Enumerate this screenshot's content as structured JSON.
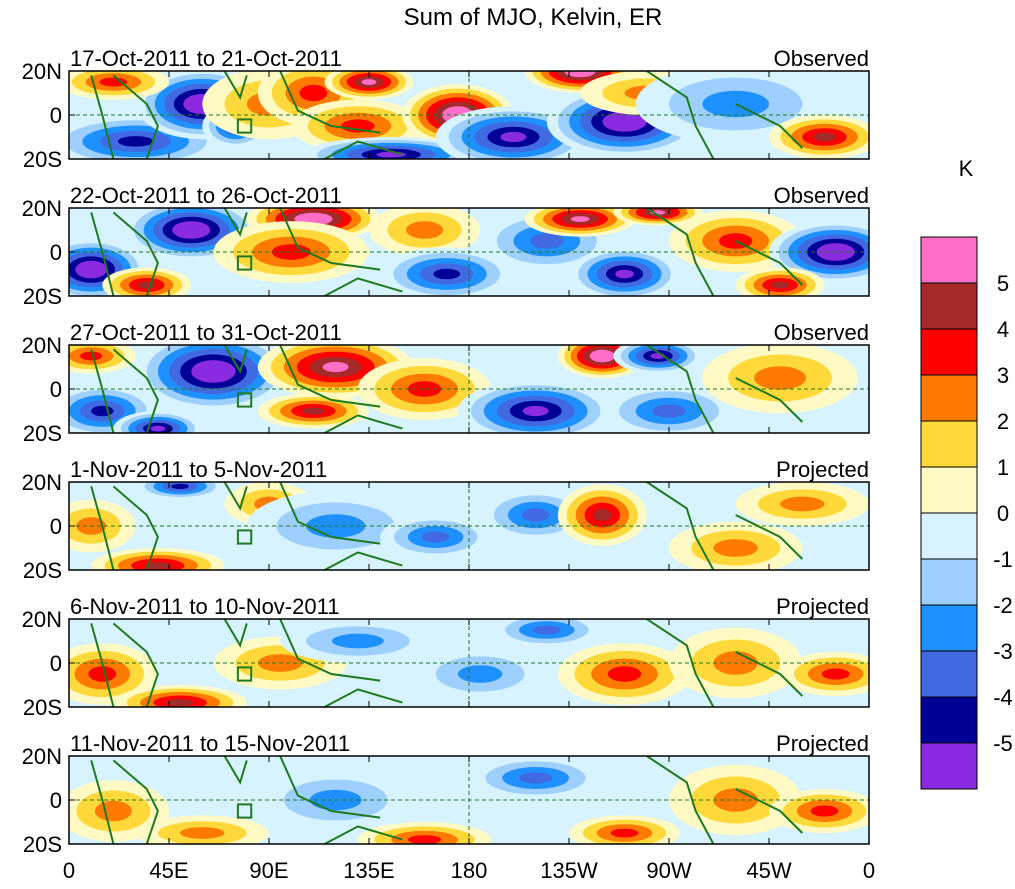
{
  "chart_data": {
    "type": "heatmap",
    "title": "Sum of MJO, Kelvin, ER",
    "colorbar": {
      "unit": "K",
      "tick_labels": [
        "5",
        "4",
        "3",
        "2",
        "1",
        "0",
        "-1",
        "-2",
        "-3",
        "-4",
        "-5"
      ],
      "colors": [
        "#ff6ec7",
        "#a52a2a",
        "#ff0000",
        "#ff7a00",
        "#ffd93a",
        "#fff9c4",
        "#d6f3ff",
        "#9ed0ff",
        "#1e90ff",
        "#4169e1",
        "#000096",
        "#8a2be2"
      ]
    },
    "x_ticks": [
      "0",
      "45E",
      "90E",
      "135E",
      "180",
      "135W",
      "90W",
      "45W",
      "0"
    ],
    "x_range": [
      0,
      360
    ],
    "y_ticks": [
      "20N",
      "0",
      "20S"
    ],
    "y_range": [
      -20,
      20
    ],
    "reference_lines": {
      "lon": 180,
      "lat": 0
    },
    "panels": [
      {
        "date_range": "17-Oct-2011 to 21-Oct-2011",
        "status": "Observed",
        "blobs": [
          {
            "lon": 30,
            "lat": -12,
            "v": -3.5,
            "w": 40,
            "h": 12
          },
          {
            "lon": 60,
            "lat": 5,
            "v": -5.2,
            "w": 30,
            "h": 16
          },
          {
            "lon": 75,
            "lat": -5,
            "v": -3.5,
            "w": 15,
            "h": 10
          },
          {
            "lon": 90,
            "lat": 5,
            "v": 1.5,
            "w": 30,
            "h": 16
          },
          {
            "lon": 110,
            "lat": 10,
            "v": 2.5,
            "w": 25,
            "h": 15
          },
          {
            "lon": 135,
            "lat": 15,
            "v": 4.5,
            "w": 20,
            "h": 8
          },
          {
            "lon": 130,
            "lat": -5,
            "v": 2.5,
            "w": 30,
            "h": 12
          },
          {
            "lon": 175,
            "lat": 0,
            "v": 5.5,
            "w": 25,
            "h": 14
          },
          {
            "lon": 145,
            "lat": -18,
            "v": -4.5,
            "w": 40,
            "h": 8
          },
          {
            "lon": 200,
            "lat": -10,
            "v": -4.5,
            "w": 35,
            "h": 14
          },
          {
            "lon": 230,
            "lat": 20,
            "v": 5.5,
            "w": 25,
            "h": 10
          },
          {
            "lon": 250,
            "lat": -3,
            "v": -5.5,
            "w": 35,
            "h": 16
          },
          {
            "lon": 260,
            "lat": 10,
            "v": 1.5,
            "w": 30,
            "h": 10
          },
          {
            "lon": 300,
            "lat": 5,
            "v": -1.5,
            "w": 45,
            "h": 18
          },
          {
            "lon": 340,
            "lat": -10,
            "v": 3.2,
            "w": 25,
            "h": 10
          },
          {
            "lon": 20,
            "lat": 15,
            "v": 2.5,
            "w": 25,
            "h": 8
          }
        ]
      },
      {
        "date_range": "22-Oct-2011 to 26-Oct-2011",
        "status": "Observed",
        "blobs": [
          {
            "lon": 10,
            "lat": -8,
            "v": -5.5,
            "w": 25,
            "h": 14
          },
          {
            "lon": 55,
            "lat": 10,
            "v": -5.5,
            "w": 30,
            "h": 14
          },
          {
            "lon": 35,
            "lat": -15,
            "v": 3.2,
            "w": 20,
            "h": 8
          },
          {
            "lon": 110,
            "lat": 15,
            "v": 5.5,
            "w": 30,
            "h": 10
          },
          {
            "lon": 100,
            "lat": 0,
            "v": 2.5,
            "w": 35,
            "h": 14
          },
          {
            "lon": 160,
            "lat": 10,
            "v": 1.5,
            "w": 25,
            "h": 12
          },
          {
            "lon": 170,
            "lat": -10,
            "v": -3.5,
            "w": 30,
            "h": 12
          },
          {
            "lon": 215,
            "lat": 5,
            "v": -2.5,
            "w": 30,
            "h": 14
          },
          {
            "lon": 230,
            "lat": 15,
            "v": 5,
            "w": 25,
            "h": 8
          },
          {
            "lon": 265,
            "lat": 18,
            "v": 5,
            "w": 20,
            "h": 6
          },
          {
            "lon": 250,
            "lat": -10,
            "v": -4.5,
            "w": 25,
            "h": 12
          },
          {
            "lon": 300,
            "lat": 5,
            "v": 2.5,
            "w": 30,
            "h": 14
          },
          {
            "lon": 345,
            "lat": 0,
            "v": -5.5,
            "w": 30,
            "h": 14
          },
          {
            "lon": 320,
            "lat": -15,
            "v": 3.2,
            "w": 20,
            "h": 8
          }
        ]
      },
      {
        "date_range": "27-Oct-2011 to 31-Oct-2011",
        "status": "Observed",
        "blobs": [
          {
            "lon": 10,
            "lat": 15,
            "v": 2.5,
            "w": 20,
            "h": 8
          },
          {
            "lon": 15,
            "lat": -10,
            "v": -3.5,
            "w": 25,
            "h": 12
          },
          {
            "lon": 65,
            "lat": 8,
            "v": -5.5,
            "w": 35,
            "h": 18
          },
          {
            "lon": 40,
            "lat": -18,
            "v": -4.5,
            "w": 20,
            "h": 8
          },
          {
            "lon": 120,
            "lat": 10,
            "v": 4.5,
            "w": 35,
            "h": 14
          },
          {
            "lon": 110,
            "lat": -10,
            "v": 3.5,
            "w": 25,
            "h": 8
          },
          {
            "lon": 160,
            "lat": 0,
            "v": 2.2,
            "w": 30,
            "h": 14
          },
          {
            "lon": 210,
            "lat": -10,
            "v": -4.5,
            "w": 35,
            "h": 14
          },
          {
            "lon": 240,
            "lat": 15,
            "v": 5.5,
            "w": 20,
            "h": 10
          },
          {
            "lon": 265,
            "lat": 15,
            "v": -4.5,
            "w": 20,
            "h": 8
          },
          {
            "lon": 270,
            "lat": -10,
            "v": -2.5,
            "w": 30,
            "h": 12
          },
          {
            "lon": 320,
            "lat": 5,
            "v": 1.8,
            "w": 35,
            "h": 16
          }
        ]
      },
      {
        "date_range": "1-Nov-2011 to 5-Nov-2011",
        "status": "Projected",
        "blobs": [
          {
            "lon": 50,
            "lat": 18,
            "v": -3.5,
            "w": 20,
            "h": 6
          },
          {
            "lon": 40,
            "lat": -18,
            "v": 3.2,
            "w": 30,
            "h": 8
          },
          {
            "lon": 10,
            "lat": 0,
            "v": 1.5,
            "w": 20,
            "h": 12
          },
          {
            "lon": 90,
            "lat": 10,
            "v": 1.5,
            "w": 20,
            "h": 10
          },
          {
            "lon": 120,
            "lat": 0,
            "v": -1.8,
            "w": 40,
            "h": 16
          },
          {
            "lon": 165,
            "lat": -5,
            "v": -2.5,
            "w": 25,
            "h": 10
          },
          {
            "lon": 210,
            "lat": 5,
            "v": -2.2,
            "w": 25,
            "h": 12
          },
          {
            "lon": 240,
            "lat": 5,
            "v": 3.8,
            "w": 20,
            "h": 14
          },
          {
            "lon": 300,
            "lat": -10,
            "v": 1.5,
            "w": 30,
            "h": 12
          },
          {
            "lon": 330,
            "lat": 10,
            "v": 1.2,
            "w": 30,
            "h": 10
          }
        ]
      },
      {
        "date_range": "6-Nov-2011 to 10-Nov-2011",
        "status": "Projected",
        "blobs": [
          {
            "lon": 15,
            "lat": -5,
            "v": 2.5,
            "w": 25,
            "h": 14
          },
          {
            "lon": 50,
            "lat": -18,
            "v": 3.2,
            "w": 30,
            "h": 8
          },
          {
            "lon": 95,
            "lat": 0,
            "v": 1.2,
            "w": 30,
            "h": 12
          },
          {
            "lon": 130,
            "lat": 10,
            "v": -1.8,
            "w": 35,
            "h": 10
          },
          {
            "lon": 185,
            "lat": -5,
            "v": -1.5,
            "w": 30,
            "h": 12
          },
          {
            "lon": 215,
            "lat": 15,
            "v": -2.5,
            "w": 25,
            "h": 8
          },
          {
            "lon": 250,
            "lat": -5,
            "v": 2.6,
            "w": 30,
            "h": 14
          },
          {
            "lon": 300,
            "lat": 0,
            "v": 1.5,
            "w": 30,
            "h": 16
          },
          {
            "lon": 345,
            "lat": -5,
            "v": 2.8,
            "w": 25,
            "h": 10
          }
        ]
      },
      {
        "date_range": "11-Nov-2011 to 15-Nov-2011",
        "status": "Projected",
        "blobs": [
          {
            "lon": 20,
            "lat": -5,
            "v": 1.8,
            "w": 25,
            "h": 14
          },
          {
            "lon": 60,
            "lat": -15,
            "v": 1.2,
            "w": 30,
            "h": 8
          },
          {
            "lon": 120,
            "lat": 0,
            "v": -1.5,
            "w": 35,
            "h": 14
          },
          {
            "lon": 160,
            "lat": -18,
            "v": 2.2,
            "w": 30,
            "h": 8
          },
          {
            "lon": 210,
            "lat": 10,
            "v": -2.2,
            "w": 30,
            "h": 10
          },
          {
            "lon": 250,
            "lat": -15,
            "v": 2.5,
            "w": 25,
            "h": 8
          },
          {
            "lon": 300,
            "lat": 0,
            "v": 1.5,
            "w": 30,
            "h": 16
          },
          {
            "lon": 340,
            "lat": -5,
            "v": 2.8,
            "w": 25,
            "h": 10
          }
        ]
      }
    ]
  }
}
